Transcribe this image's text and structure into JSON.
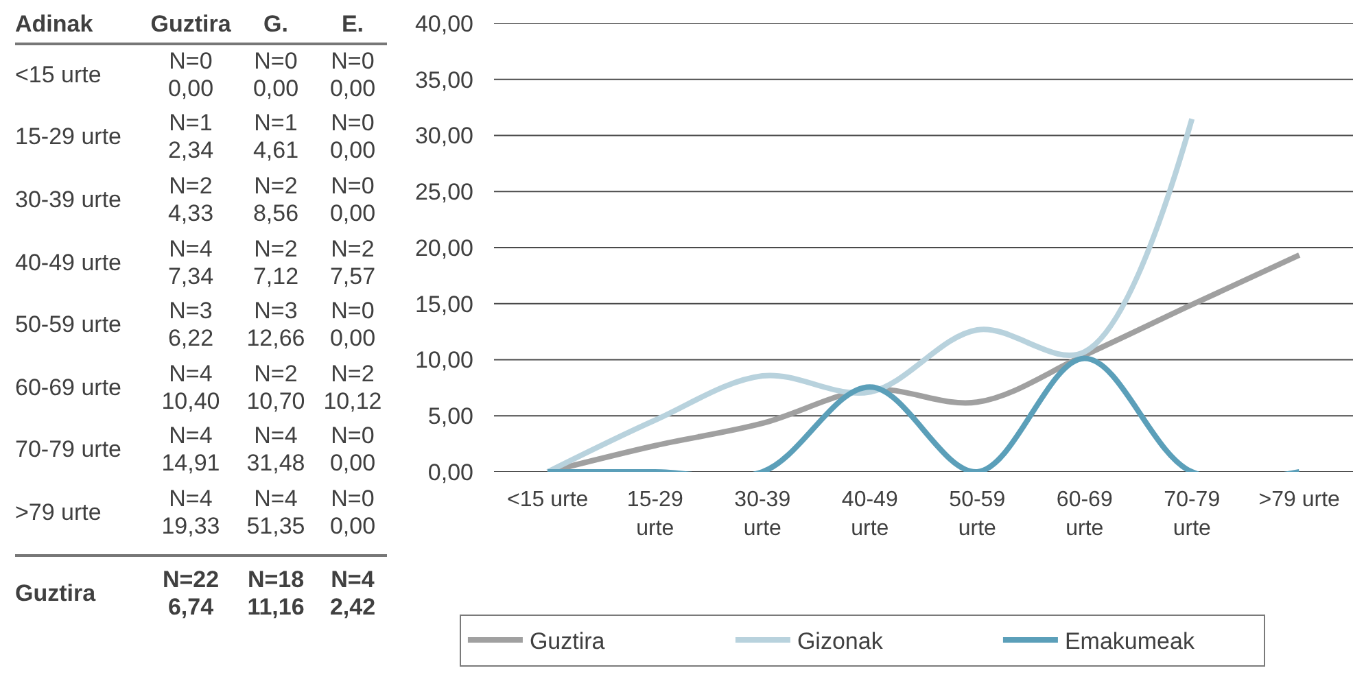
{
  "chart_data": {
    "type": "line",
    "categories": [
      "<15 urte",
      "15-29 urte",
      "30-39 urte",
      "40-49 urte",
      "50-59 urte",
      "60-69 urte",
      "70-79 urte",
      ">79 urte"
    ],
    "series": [
      {
        "name": "Guztira",
        "color": "#a0a0a0",
        "values": [
          0,
          2.34,
          4.33,
          7.34,
          6.22,
          10.4,
          14.91,
          19.33
        ]
      },
      {
        "name": "Gizonak",
        "color": "#b8d2dd",
        "values": [
          0,
          4.61,
          8.56,
          7.12,
          12.66,
          10.7,
          31.48,
          null
        ]
      },
      {
        "name": "Emakumeak",
        "color": "#5b9fb9",
        "values": [
          0,
          0,
          0,
          7.57,
          0,
          10.12,
          0,
          0
        ]
      }
    ],
    "annotations": [
      "Adinak",
      "Guztira",
      "G.",
      "E.",
      "N=0\n0,00",
      "N=0\n0,00",
      "N=0\n0,00",
      "N=1\n2,34",
      "N=1\n4,61",
      "N=0\n0,00",
      "N=2\n4,33",
      "N=2\n8,56",
      "N=0\n0,00",
      "N=4\n7,34",
      "N=2\n7,12",
      "N=2\n7,57",
      "N=3\n6,22",
      "N=3\n12,66",
      "N=0\n0,00",
      "N=4\n10,40",
      "N=2\n10,70",
      "N=2\n10,12",
      "N=4\n14,91",
      "N=4\n31,48",
      "N=0\n0,00",
      "N=4\n19,33",
      "N=4\n51,35",
      "N=0\n0,00",
      "Guztira",
      "N=22\n6,74",
      "N=18\n11,16",
      "N=4\n2,42"
    ],
    "ylim": [
      0,
      40
    ],
    "yticks": [
      {
        "value": 0,
        "label": "0,00"
      },
      {
        "value": 5,
        "label": "5,00"
      },
      {
        "value": 10,
        "label": "10,00"
      },
      {
        "value": 15,
        "label": "15,00"
      },
      {
        "value": 20,
        "label": "20,00"
      },
      {
        "value": 25,
        "label": "25,00"
      },
      {
        "value": 30,
        "label": "30,00"
      },
      {
        "value": 35,
        "label": "35,00"
      },
      {
        "value": 40,
        "label": "40,00"
      }
    ],
    "grid": "y",
    "legend": "bottom",
    "marker": "none",
    "line_style": "solid"
  }
}
